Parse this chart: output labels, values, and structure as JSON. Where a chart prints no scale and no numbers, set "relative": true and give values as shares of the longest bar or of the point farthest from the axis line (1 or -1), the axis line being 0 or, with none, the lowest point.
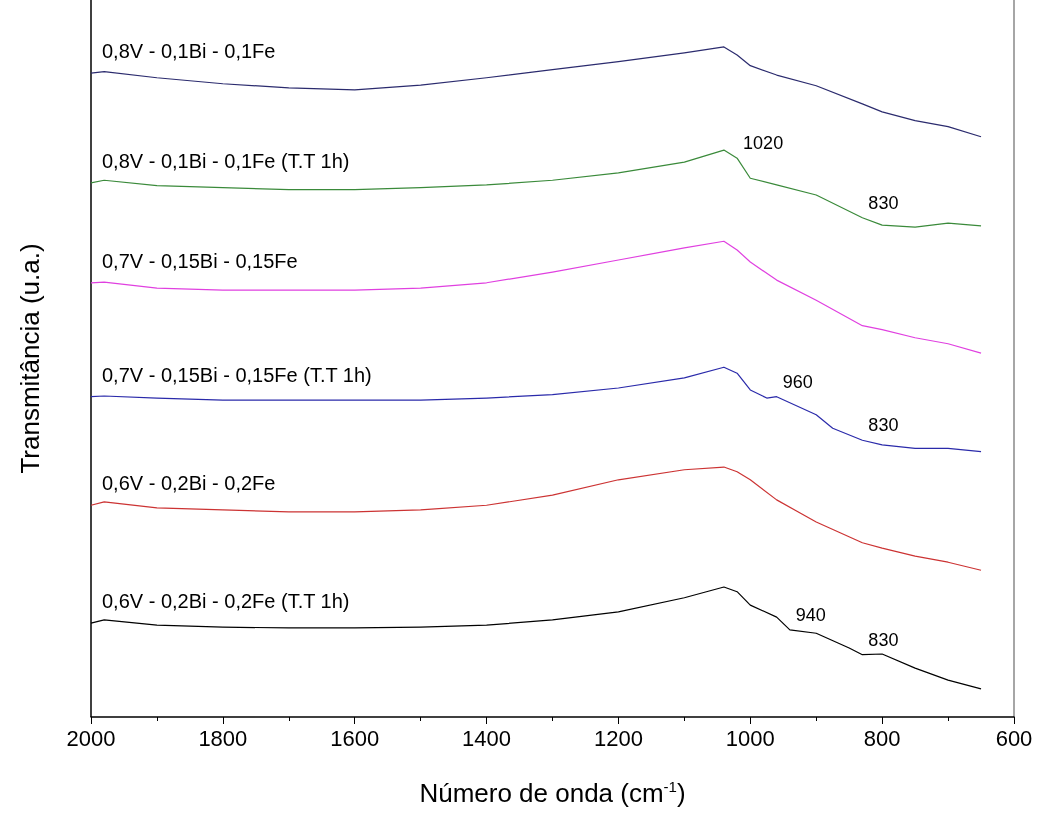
{
  "chart_data": {
    "type": "line",
    "relative": true,
    "xlabel": "Número de onda (cm$^{-1}$)",
    "ylabel": "Transmitância (u.a.)",
    "xlim": [
      2000,
      600
    ],
    "xticks": [
      2000,
      1800,
      1600,
      1400,
      1200,
      1000,
      800,
      600
    ],
    "series": [
      {
        "name": "0,8V - 0,1Bi - 0,1Fe",
        "color": "#2b2b6e",
        "x": [
          2000,
          1980,
          1900,
          1800,
          1700,
          1600,
          1500,
          1400,
          1300,
          1200,
          1100,
          1040,
          1020,
          1000,
          960,
          900,
          830,
          800,
          750,
          700,
          650
        ],
        "values": [
          0.961,
          0.963,
          0.954,
          0.945,
          0.939,
          0.936,
          0.943,
          0.954,
          0.966,
          0.978,
          0.991,
          1,
          0.988,
          0.972,
          0.958,
          0.942,
          0.915,
          0.903,
          0.89,
          0.881,
          0.866
        ]
      },
      {
        "name": "0,8V - 0,1Bi - 0,1Fe (T.T 1h)",
        "color": "#3a8a3a",
        "x": [
          2000,
          1980,
          1900,
          1800,
          1700,
          1600,
          1500,
          1400,
          1300,
          1200,
          1100,
          1040,
          1020,
          1000,
          960,
          900,
          830,
          800,
          750,
          700,
          650
        ],
        "values": [
          0.797,
          0.801,
          0.793,
          0.79,
          0.787,
          0.787,
          0.79,
          0.794,
          0.801,
          0.812,
          0.828,
          0.846,
          0.834,
          0.804,
          0.794,
          0.779,
          0.745,
          0.734,
          0.731,
          0.737,
          0.733
        ]
      },
      {
        "name": "0,7V - 0,15Bi - 0,15Fe",
        "color": "#e040e0",
        "x": [
          2000,
          1980,
          1900,
          1800,
          1700,
          1600,
          1500,
          1400,
          1300,
          1200,
          1100,
          1040,
          1020,
          1000,
          960,
          900,
          830,
          800,
          750,
          700,
          650
        ],
        "values": [
          0.648,
          0.649,
          0.64,
          0.637,
          0.637,
          0.637,
          0.64,
          0.648,
          0.664,
          0.682,
          0.7,
          0.71,
          0.697,
          0.679,
          0.652,
          0.622,
          0.584,
          0.578,
          0.566,
          0.557,
          0.543
        ]
      },
      {
        "name": "0,7V - 0,15Bi - 0,15Fe (T.T 1h)",
        "color": "#2a2aaa",
        "x": [
          2000,
          1980,
          1900,
          1800,
          1700,
          1600,
          1500,
          1400,
          1300,
          1200,
          1100,
          1040,
          1020,
          1000,
          975,
          960,
          900,
          875,
          830,
          800,
          750,
          700,
          650
        ],
        "values": [
          0.478,
          0.479,
          0.476,
          0.473,
          0.473,
          0.473,
          0.473,
          0.476,
          0.481,
          0.491,
          0.506,
          0.522,
          0.513,
          0.488,
          0.476,
          0.478,
          0.451,
          0.431,
          0.413,
          0.406,
          0.401,
          0.401,
          0.396
        ]
      },
      {
        "name": "0,6V - 0,2Bi - 0,2Fe",
        "color": "#cc3333",
        "x": [
          2000,
          1980,
          1900,
          1800,
          1700,
          1600,
          1500,
          1400,
          1300,
          1200,
          1100,
          1040,
          1020,
          1000,
          960,
          900,
          830,
          800,
          750,
          700,
          650
        ],
        "values": [
          0.316,
          0.321,
          0.312,
          0.309,
          0.306,
          0.306,
          0.309,
          0.316,
          0.331,
          0.354,
          0.369,
          0.373,
          0.366,
          0.354,
          0.324,
          0.291,
          0.26,
          0.252,
          0.24,
          0.231,
          0.219
        ]
      },
      {
        "name": "0,6V - 0,2Bi - 0,2Fe (T.T 1h)",
        "color": "#000000",
        "x": [
          2000,
          1980,
          1900,
          1800,
          1700,
          1600,
          1500,
          1400,
          1300,
          1200,
          1100,
          1040,
          1020,
          1000,
          960,
          940,
          900,
          850,
          830,
          800,
          750,
          700,
          650
        ],
        "values": [
          0.14,
          0.145,
          0.137,
          0.134,
          0.133,
          0.133,
          0.134,
          0.137,
          0.145,
          0.157,
          0.178,
          0.194,
          0.187,
          0.167,
          0.149,
          0.13,
          0.125,
          0.103,
          0.093,
          0.094,
          0.073,
          0.055,
          0.042
        ]
      }
    ],
    "annotations": [
      {
        "text": "1020",
        "x": 1020,
        "y": 0.834
      },
      {
        "text": "830",
        "x": 830,
        "y": 0.745
      },
      {
        "text": "960",
        "x": 960,
        "y": 0.478
      },
      {
        "text": "830",
        "x": 830,
        "y": 0.413
      },
      {
        "text": "940",
        "x": 940,
        "y": 0.13
      },
      {
        "text": "830",
        "x": 830,
        "y": 0.093
      }
    ]
  }
}
